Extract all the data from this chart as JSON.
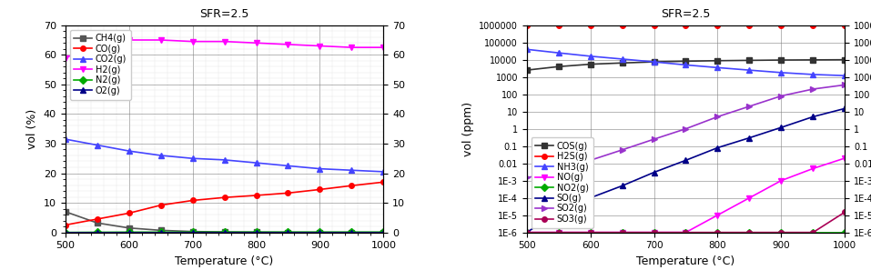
{
  "title": "SFR=2.5",
  "temperatures": [
    500,
    550,
    600,
    650,
    700,
    750,
    800,
    850,
    900,
    950,
    1000
  ],
  "left_chart": {
    "xlabel": "Temperature (°C)",
    "ylabel": "vol (%)",
    "ylim": [
      0,
      70
    ],
    "yticks": [
      0,
      10,
      20,
      30,
      40,
      50,
      60,
      70
    ],
    "CH4": [
      7.0,
      3.2,
      1.5,
      0.7,
      0.3,
      0.15,
      0.08,
      0.04,
      0.02,
      0.01,
      0.005
    ],
    "CO": [
      2.5,
      4.5,
      6.5,
      9.2,
      10.8,
      11.8,
      12.5,
      13.3,
      14.5,
      15.8,
      17.0
    ],
    "CO2": [
      31.5,
      29.5,
      27.5,
      26.0,
      25.0,
      24.5,
      23.5,
      22.5,
      21.5,
      21.0,
      20.5
    ],
    "H2": [
      59.0,
      63.0,
      65.0,
      65.0,
      64.5,
      64.5,
      64.0,
      63.5,
      63.0,
      62.5,
      62.5
    ],
    "N2": [
      0.0,
      0.05,
      0.1,
      0.1,
      0.1,
      0.1,
      0.1,
      0.1,
      0.1,
      0.1,
      0.1
    ],
    "O2": [
      0.0,
      0.0,
      0.0,
      0.0,
      0.0,
      0.0,
      0.0,
      0.0,
      0.0,
      0.0,
      0.0
    ],
    "series_order": [
      "CH4",
      "CO",
      "CO2",
      "H2",
      "N2",
      "O2"
    ],
    "colors": {
      "CH4": "#555555",
      "CO": "#ff0000",
      "CO2": "#4444ff",
      "H2": "#ff00ff",
      "N2": "#00aa00",
      "O2": "#000088"
    },
    "markers": {
      "CH4": "s",
      "CO": "o",
      "CO2": "^",
      "H2": "v",
      "N2": "D",
      "O2": "^"
    },
    "labels": {
      "CH4": "CH4(g)",
      "CO": "CO(g)",
      "CO2": "CO2(g)",
      "H2": "H2(g)",
      "N2": "N2(g)",
      "O2": "O2(g)"
    }
  },
  "right_chart": {
    "xlabel": "Temperature (°C)",
    "ylabel": "vol (ppm)",
    "ylim_log": [
      1e-06,
      1000000.0
    ],
    "COS": [
      2500,
      4000,
      5500,
      6500,
      7500,
      8200,
      8800,
      9200,
      9600,
      9800,
      10000
    ],
    "H2S": [
      1000000,
      1000000,
      1000000,
      1000000,
      1000000,
      1000000,
      1000000,
      1000000,
      1000000,
      1000000,
      1000000
    ],
    "NH3": [
      40000,
      25000,
      16000,
      11000,
      7500,
      5000,
      3500,
      2500,
      1800,
      1400,
      1200
    ],
    "NO": [
      1e-06,
      1e-06,
      1e-06,
      1e-06,
      1e-06,
      1e-06,
      1e-05,
      0.0001,
      0.001,
      0.005,
      0.02
    ],
    "NO2": [
      1e-06,
      1e-06,
      1e-06,
      1e-06,
      1e-06,
      1e-06,
      1e-06,
      1e-06,
      1e-06,
      1e-06,
      1e-06
    ],
    "SO": [
      1e-06,
      1.5e-05,
      0.0001,
      0.0005,
      0.003,
      0.015,
      0.08,
      0.3,
      1.2,
      5.0,
      15.0
    ],
    "SO2": [
      0.0015,
      0.003,
      0.015,
      0.06,
      0.25,
      1.0,
      5.0,
      20.0,
      80.0,
      200.0,
      350.0
    ],
    "SO3": [
      1e-06,
      1e-06,
      1e-06,
      1e-06,
      1e-06,
      1e-06,
      1e-06,
      1e-06,
      1e-06,
      1e-06,
      1.5e-05
    ],
    "series_order": [
      "COS",
      "H2S",
      "NH3",
      "NO",
      "NO2",
      "SO",
      "SO2",
      "SO3"
    ],
    "colors": {
      "COS": "#333333",
      "H2S": "#ff0000",
      "NH3": "#4444ff",
      "NO": "#ff00ff",
      "NO2": "#00aa00",
      "SO": "#000088",
      "SO2": "#9933cc",
      "SO3": "#aa0055"
    },
    "markers": {
      "COS": "s",
      "H2S": "o",
      "NH3": "^",
      "NO": "v",
      "NO2": "D",
      "SO": "^",
      "SO2": ">",
      "SO3": "o"
    },
    "labels": {
      "COS": "COS(g)",
      "H2S": "H2S(g)",
      "NH3": "NH3(g)",
      "NO": "NO(g)",
      "NO2": "NO2(g)",
      "SO": "SO(g)",
      "SO2": "SO2(g)",
      "SO3": "SO3(g)"
    }
  }
}
